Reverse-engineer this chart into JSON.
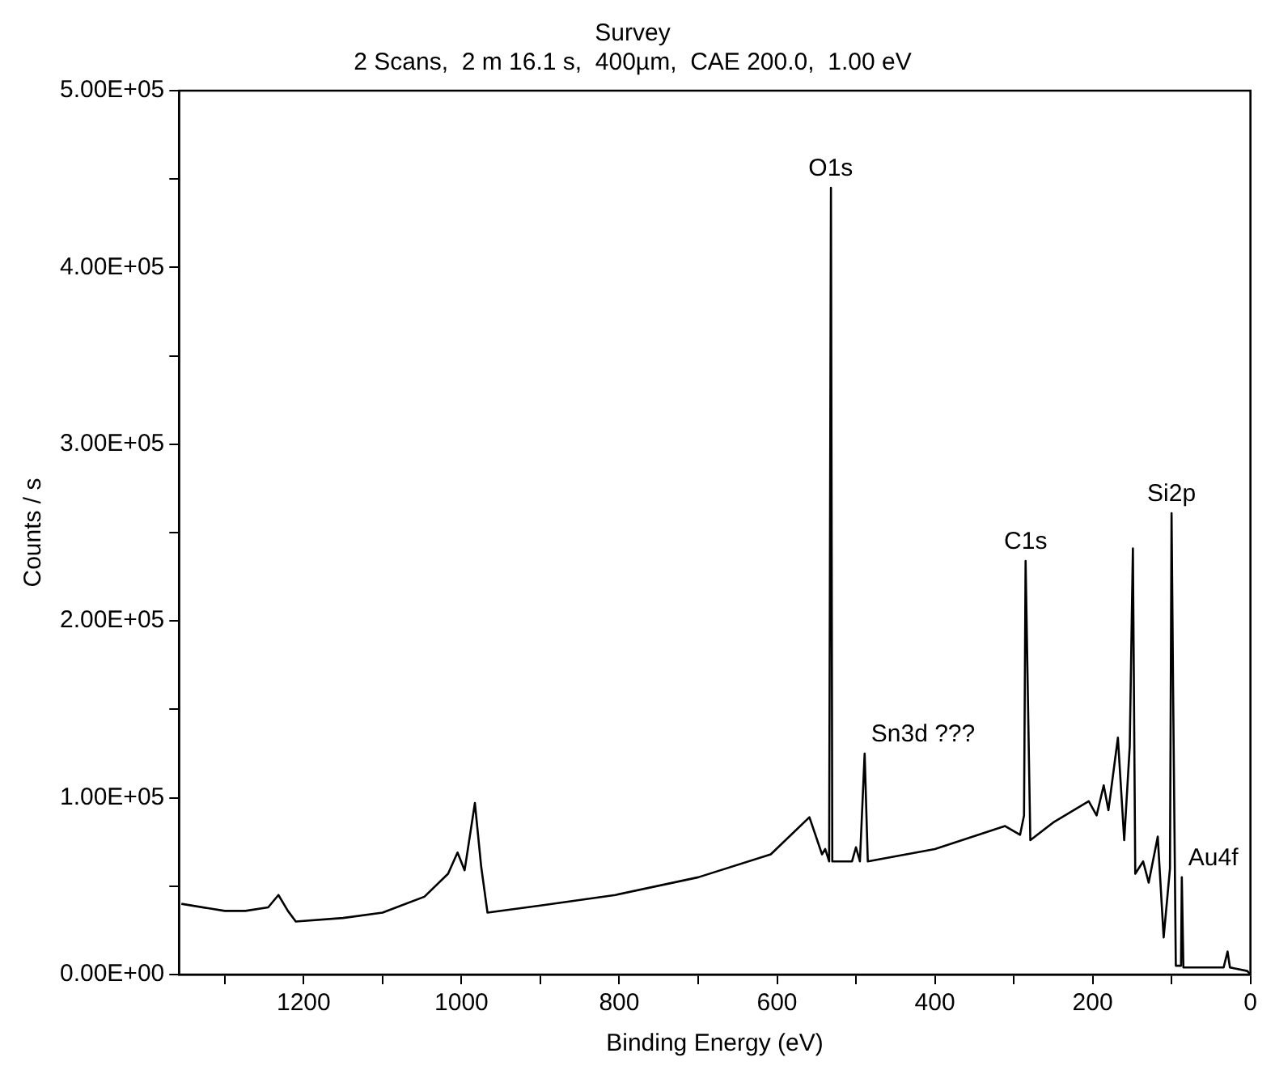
{
  "chart_data": {
    "type": "line",
    "title": "Survey",
    "subtitle": "2 Scans,  2 m 16.1 s,  400µm,  CAE 200.0,  1.00 eV",
    "xlabel": "Binding Energy (eV)",
    "ylabel": "Counts / s",
    "x": [
      1355,
      1300,
      1274,
      1245,
      1232,
      1220,
      1210,
      1150,
      1100,
      1047,
      1017,
      1005,
      996,
      983,
      975,
      967,
      900,
      805,
      700,
      608,
      559,
      543,
      539,
      534,
      531.7,
      530,
      505,
      500,
      495,
      489,
      485,
      400,
      311,
      292,
      287,
      285,
      279,
      250,
      205,
      195,
      186,
      180,
      168,
      160,
      153,
      149,
      146,
      136,
      129,
      117.5,
      110,
      102,
      100,
      98,
      94.6,
      88,
      87,
      85,
      60,
      34,
      29,
      26,
      4,
      0
    ],
    "series": [
      {
        "color": "#000000",
        "values": [
          40000,
          36000,
          36000,
          38000,
          45000,
          36000,
          30000,
          32000,
          35000,
          44000,
          57000,
          69000,
          59000,
          97000,
          61000,
          35000,
          39000,
          45000,
          55000,
          68000,
          89000,
          68000,
          71000,
          64000,
          445000,
          64000,
          64000,
          72000,
          64000,
          125000,
          64000,
          71000,
          84000,
          79000,
          90000,
          234000,
          76000,
          86000,
          98000,
          90000,
          107000,
          93000,
          134000,
          76000,
          129000,
          241000,
          57000,
          64000,
          52000,
          78000,
          21000,
          60000,
          261000,
          160000,
          5000,
          5000,
          55000,
          4000,
          4000,
          4000,
          13000,
          4000,
          2000,
          0
        ]
      }
    ],
    "xlim": [
      1358,
      0
    ],
    "xticks": [
      {
        "value": 1300,
        "label": null
      },
      1200,
      {
        "value": 1100,
        "label": null
      },
      1000,
      {
        "value": 900,
        "label": null
      },
      800,
      {
        "value": 700,
        "label": null
      },
      600,
      {
        "value": 500,
        "label": null
      },
      400,
      {
        "value": 300,
        "label": null
      },
      200,
      {
        "value": 100,
        "label": null
      },
      0
    ],
    "ylim": [
      0,
      500000
    ],
    "yticks": [
      {
        "value": 0,
        "label": "0.00E+00"
      },
      {
        "value": 50000,
        "label": null
      },
      {
        "value": 100000,
        "label": "1.00E+05"
      },
      {
        "value": 150000,
        "label": null
      },
      {
        "value": 200000,
        "label": "2.00E+05"
      },
      {
        "value": 250000,
        "label": null
      },
      {
        "value": 300000,
        "label": "3.00E+05"
      },
      {
        "value": 350000,
        "label": null
      },
      {
        "value": 400000,
        "label": "4.00E+05"
      },
      {
        "value": 450000,
        "label": null
      },
      {
        "value": 500000,
        "label": "5.00E+05"
      }
    ],
    "annotations": [
      {
        "text": "O1s",
        "x": 532,
        "y": 445000
      },
      {
        "text": "Sn3d ???",
        "x": 489,
        "y": 125000
      },
      {
        "text": "C1s",
        "x": 285,
        "y": 234000
      },
      {
        "text": "Si2p",
        "x": 100,
        "y": 261000
      },
      {
        "text": "Au4f",
        "x": 87,
        "y": 55000
      }
    ],
    "grid": false,
    "legend": false,
    "marker": "none",
    "line_style": "solid"
  }
}
